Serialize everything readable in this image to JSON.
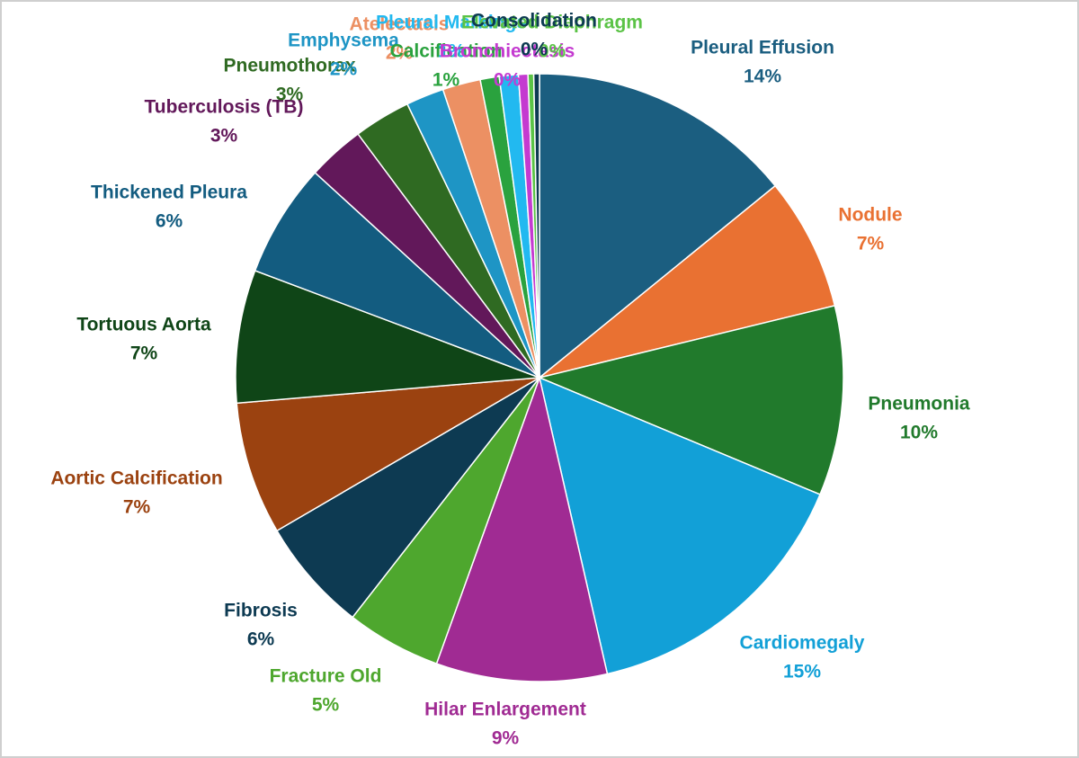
{
  "chart_data": {
    "type": "pie",
    "title": "",
    "slices": [
      {
        "name": "Pleural Effusion",
        "value": 14,
        "label": "14%",
        "color": "#1b5e80"
      },
      {
        "name": "Nodule",
        "value": 7,
        "label": "7%",
        "color": "#e97132"
      },
      {
        "name": "Pneumonia",
        "value": 10,
        "label": "10%",
        "color": "#217a2c"
      },
      {
        "name": "Cardiomegaly",
        "value": 15,
        "label": "15%",
        "color": "#12a0d7"
      },
      {
        "name": "Hilar Enlargement",
        "value": 9,
        "label": "9%",
        "color": "#a02b93"
      },
      {
        "name": "Fracture Old",
        "value": 5,
        "label": "5%",
        "color": "#4ea72e"
      },
      {
        "name": "Fibrosis",
        "value": 6,
        "label": "6%",
        "color": "#0d3a52"
      },
      {
        "name": "Aortic Calcification",
        "value": 7,
        "label": "7%",
        "color": "#9b4210"
      },
      {
        "name": "Tortuous Aorta",
        "value": 7,
        "label": "7%",
        "color": "#0f4517"
      },
      {
        "name": "Thickened Pleura",
        "value": 6,
        "label": "6%",
        "color": "#135c80"
      },
      {
        "name": "Tuberculosis (TB)",
        "value": 3,
        "label": "3%",
        "color": "#62185a"
      },
      {
        "name": "Pneumothorax",
        "value": 3,
        "label": "3%",
        "color": "#2f6a22"
      },
      {
        "name": "Emphysema",
        "value": 2,
        "label": "2%",
        "color": "#1e95c5"
      },
      {
        "name": "Atelectasis",
        "value": 2,
        "label": "2%",
        "color": "#ec9063"
      },
      {
        "name": "Calcification",
        "value": 1,
        "label": "1%",
        "color": "#2aa23e"
      },
      {
        "name": "Pleural Markings",
        "value": 1,
        "label": "1%",
        "color": "#22b9f0"
      },
      {
        "name": "Bronchiectasis",
        "value": 0.5,
        "label": "0%",
        "color": "#c43ad0"
      },
      {
        "name": "Elevated Diaphragm",
        "value": 0.3,
        "label": "0%",
        "color": "#5bc346"
      },
      {
        "name": "Consolidation",
        "value": 0.3,
        "label": "0%",
        "color": "#0d3a52"
      }
    ]
  }
}
